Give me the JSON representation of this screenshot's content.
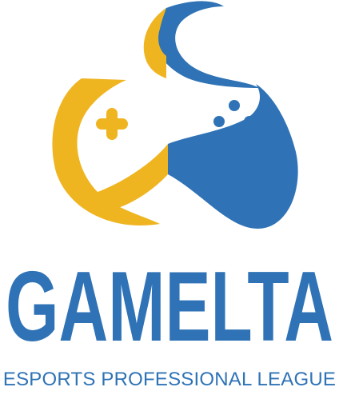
{
  "brand": {
    "name": "GAMELTA",
    "tagline": "ESPORTS PROFESSIONAL LEAGUE"
  },
  "colors": {
    "blue": "#2f73b6",
    "yellow": "#efb521",
    "white": "#ffffff"
  },
  "icons": {
    "emblem": "gamepad-controller-icon",
    "dpad": "dpad-cross-icon",
    "buttons": "four-dots-buttons-icon"
  }
}
